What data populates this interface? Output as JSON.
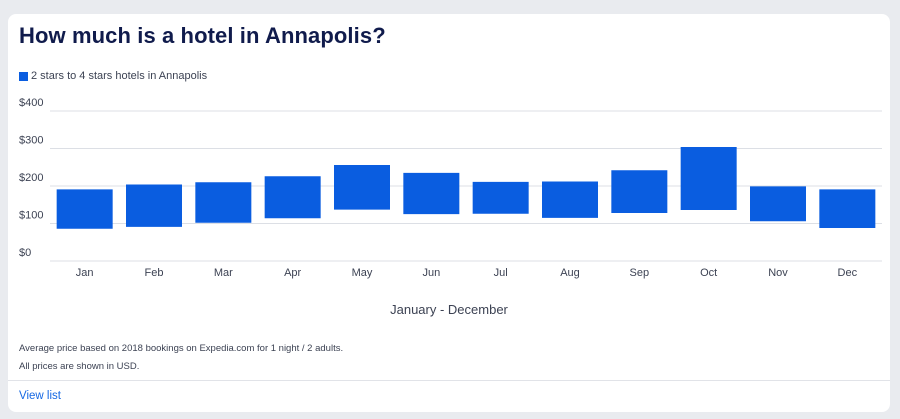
{
  "title": "How much is a hotel in Annapolis?",
  "legend": {
    "label": "2 stars to 4 stars hotels in Annapolis",
    "color": "#0a5de0"
  },
  "chart_data": {
    "type": "bar",
    "title": "How much is a hotel in Annapolis?",
    "xlabel": "January - December",
    "ylabel": "",
    "ylim": [
      0,
      400
    ],
    "yticks": [
      0,
      100,
      200,
      300,
      400
    ],
    "ytick_labels": [
      "$0",
      "$100",
      "$200",
      "$300",
      "$400"
    ],
    "categories": [
      "Jan",
      "Feb",
      "Mar",
      "Apr",
      "May",
      "Jun",
      "Jul",
      "Aug",
      "Sep",
      "Oct",
      "Nov",
      "Dec"
    ],
    "series": [
      {
        "name": "2 stars to 4 stars hotels in Annapolis",
        "low": [
          86,
          91,
          102,
          114,
          137,
          125,
          126,
          115,
          128,
          136,
          106,
          88
        ],
        "high": [
          191,
          204,
          210,
          226,
          256,
          235,
          211,
          212,
          242,
          304,
          199,
          191
        ]
      }
    ],
    "grid": true,
    "legend_position": "top-left",
    "bar_color": "#0a5de0"
  },
  "notes": {
    "basis": "Average price based on 2018 bookings on Expedia.com for 1 night / 2 adults.",
    "currency": "All prices are shown in USD."
  },
  "footer": {
    "view_list": "View list"
  }
}
